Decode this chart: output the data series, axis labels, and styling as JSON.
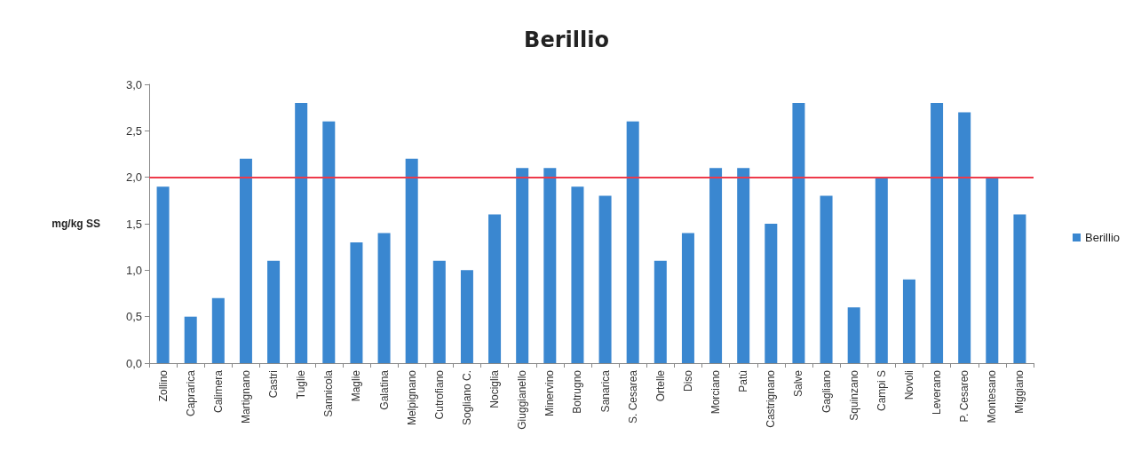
{
  "chart_data": {
    "type": "bar",
    "title": "Berillio",
    "ylabel": "mg/kg SS",
    "categories": [
      "Zollino",
      "Caprarica",
      "Calimera",
      "Martignano",
      "Castri",
      "Tuglie",
      "Sannicola",
      "Maglie",
      "Galatina",
      "Melpignano",
      "Cutrofiano",
      "Sogliano C.",
      "Nociglia",
      "Giuggianello",
      "Minervino",
      "Botrugno",
      "Sanarica",
      "S. Cesarea",
      "Ortelle",
      "Diso",
      "Morciano",
      "Patù",
      "Castrignano",
      "Salve",
      "Gagliano",
      "Squinzano",
      "Campi S",
      "Novoli",
      "Leverano",
      "P. Cesareo",
      "Montesano",
      "Miggiano"
    ],
    "series": [
      {
        "name": "Berillio",
        "color": "#3a87d0",
        "values": [
          1.9,
          0.5,
          0.7,
          2.2,
          1.1,
          2.8,
          2.6,
          1.3,
          1.4,
          2.2,
          1.1,
          1.0,
          1.6,
          2.1,
          2.1,
          1.9,
          1.8,
          2.6,
          1.1,
          1.4,
          2.1,
          2.1,
          1.5,
          2.8,
          1.8,
          0.6,
          2.0,
          0.9,
          2.8,
          2.7,
          2.0,
          1.6
        ]
      }
    ],
    "ylim": [
      0,
      3
    ],
    "yticks": [
      {
        "value": 0,
        "label": "0,0"
      },
      {
        "value": 0.5,
        "label": "0,5"
      },
      {
        "value": 1,
        "label": "1,0"
      },
      {
        "value": 1.5,
        "label": "1,5"
      },
      {
        "value": 2,
        "label": "2,0"
      },
      {
        "value": 2.5,
        "label": "2,5"
      },
      {
        "value": 3,
        "label": "3,0"
      }
    ],
    "ref_lines": [
      {
        "axis": "y",
        "value": 2,
        "color": "#ee3a4a"
      }
    ],
    "grid": false,
    "legend": "right"
  }
}
